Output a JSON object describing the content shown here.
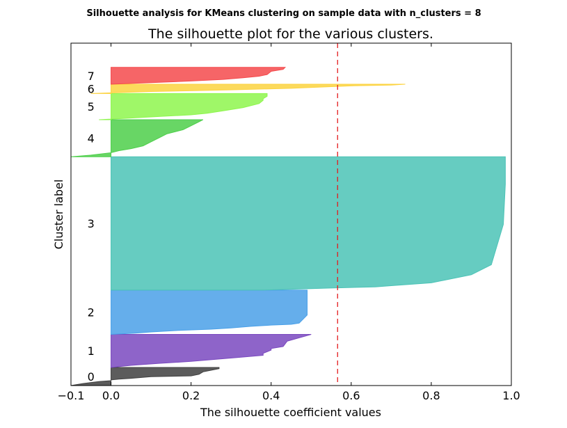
{
  "figure": {
    "suptitle": "Silhouette analysis for KMeans clustering on sample data with n_clusters = 8"
  },
  "chart_data": {
    "type": "area",
    "title": "The silhouette plot for the various clusters.",
    "xlabel": "The silhouette coefficient values",
    "ylabel": "Cluster label",
    "xlim": [
      -0.1,
      1.0
    ],
    "xticks": [
      -0.1,
      0.0,
      0.2,
      0.4,
      0.6,
      0.8,
      1.0
    ],
    "xtick_labels": [
      "−0.1",
      "0.0",
      "0.2",
      "0.4",
      "0.6",
      "0.8",
      "1.0"
    ],
    "ylim": [
      0,
      850
    ],
    "yticks": [],
    "grid": false,
    "average_silhouette_line": {
      "x": 0.566,
      "color": "#e41a1c",
      "style": "dashed"
    },
    "clusters": [
      {
        "label": "0",
        "color": "#404040",
        "y_lower": 0,
        "y_upper": 45,
        "profile": [
          [
            0,
            -0.1
          ],
          [
            5,
            -0.07
          ],
          [
            10,
            -0.03
          ],
          [
            12,
            0.0
          ],
          [
            14,
            0.0
          ],
          [
            16,
            0.02
          ],
          [
            18,
            0.05
          ],
          [
            22,
            0.1
          ],
          [
            24,
            0.2
          ],
          [
            28,
            0.22
          ],
          [
            34,
            0.23
          ],
          [
            38,
            0.25
          ],
          [
            42,
            0.27
          ],
          [
            45,
            0.27
          ]
        ]
      },
      {
        "label": "1",
        "color": "#7a49bf",
        "y_lower": 45,
        "y_upper": 127,
        "profile": [
          [
            45,
            0.0
          ],
          [
            50,
            0.05
          ],
          [
            55,
            0.12
          ],
          [
            60,
            0.2
          ],
          [
            65,
            0.26
          ],
          [
            70,
            0.32
          ],
          [
            75,
            0.38
          ],
          [
            80,
            0.38
          ],
          [
            84,
            0.39
          ],
          [
            88,
            0.4
          ],
          [
            92,
            0.4
          ],
          [
            97,
            0.43
          ],
          [
            110,
            0.44
          ],
          [
            127,
            0.5
          ]
        ]
      },
      {
        "label": "2",
        "color": "#4aa0e8",
        "y_lower": 127,
        "y_upper": 237,
        "profile": [
          [
            127,
            0.0
          ],
          [
            130,
            0.06
          ],
          [
            133,
            0.1
          ],
          [
            137,
            0.17
          ],
          [
            140,
            0.25
          ],
          [
            143,
            0.3
          ],
          [
            147,
            0.35
          ],
          [
            150,
            0.4
          ],
          [
            152,
            0.45
          ],
          [
            155,
            0.47
          ],
          [
            165,
            0.48
          ],
          [
            175,
            0.49
          ],
          [
            190,
            0.49
          ],
          [
            237,
            0.49
          ]
        ]
      },
      {
        "label": "3",
        "color": "#4bc3b6",
        "y_lower": 237,
        "y_upper": 568,
        "profile": [
          [
            237,
            0.38
          ],
          [
            242,
            0.55
          ],
          [
            245,
            0.66
          ],
          [
            248,
            0.7
          ],
          [
            255,
            0.8
          ],
          [
            275,
            0.9
          ],
          [
            300,
            0.95
          ],
          [
            400,
            0.98
          ],
          [
            500,
            0.985
          ],
          [
            568,
            0.985
          ]
        ]
      },
      {
        "label": "4",
        "color": "#4dcf4a",
        "y_lower": 568,
        "y_upper": 660,
        "profile": [
          [
            568,
            -0.1
          ],
          [
            572,
            -0.05
          ],
          [
            578,
            0.0
          ],
          [
            583,
            0.02
          ],
          [
            588,
            0.05
          ],
          [
            595,
            0.08
          ],
          [
            605,
            0.1
          ],
          [
            615,
            0.12
          ],
          [
            625,
            0.14
          ],
          [
            635,
            0.18
          ],
          [
            645,
            0.2
          ],
          [
            655,
            0.22
          ],
          [
            660,
            0.23
          ]
        ]
      },
      {
        "label": "5",
        "color": "#8ef64d",
        "y_lower": 660,
        "y_upper": 725,
        "profile": [
          [
            660,
            -0.03
          ],
          [
            664,
            0.05
          ],
          [
            668,
            0.12
          ],
          [
            672,
            0.2
          ],
          [
            676,
            0.24
          ],
          [
            682,
            0.28
          ],
          [
            690,
            0.33
          ],
          [
            700,
            0.37
          ],
          [
            708,
            0.38
          ],
          [
            712,
            0.38
          ],
          [
            718,
            0.39
          ],
          [
            725,
            0.39
          ]
        ]
      },
      {
        "label": "6",
        "color": "#fcd33f",
        "y_lower": 725,
        "y_upper": 748,
        "profile": [
          [
            725,
            -0.05
          ],
          [
            730,
            0.1
          ],
          [
            734,
            0.3
          ],
          [
            738,
            0.45
          ],
          [
            742,
            0.55
          ],
          [
            744,
            0.6
          ],
          [
            746,
            0.7
          ],
          [
            748,
            0.735
          ]
        ]
      },
      {
        "label": "7",
        "color": "#f44a4c",
        "y_lower": 748,
        "y_upper": 790,
        "profile": [
          [
            748,
            0.0
          ],
          [
            752,
            0.1
          ],
          [
            756,
            0.2
          ],
          [
            760,
            0.28
          ],
          [
            764,
            0.33
          ],
          [
            768,
            0.37
          ],
          [
            772,
            0.39
          ],
          [
            780,
            0.4
          ],
          [
            785,
            0.43
          ],
          [
            790,
            0.435
          ]
        ]
      }
    ]
  }
}
